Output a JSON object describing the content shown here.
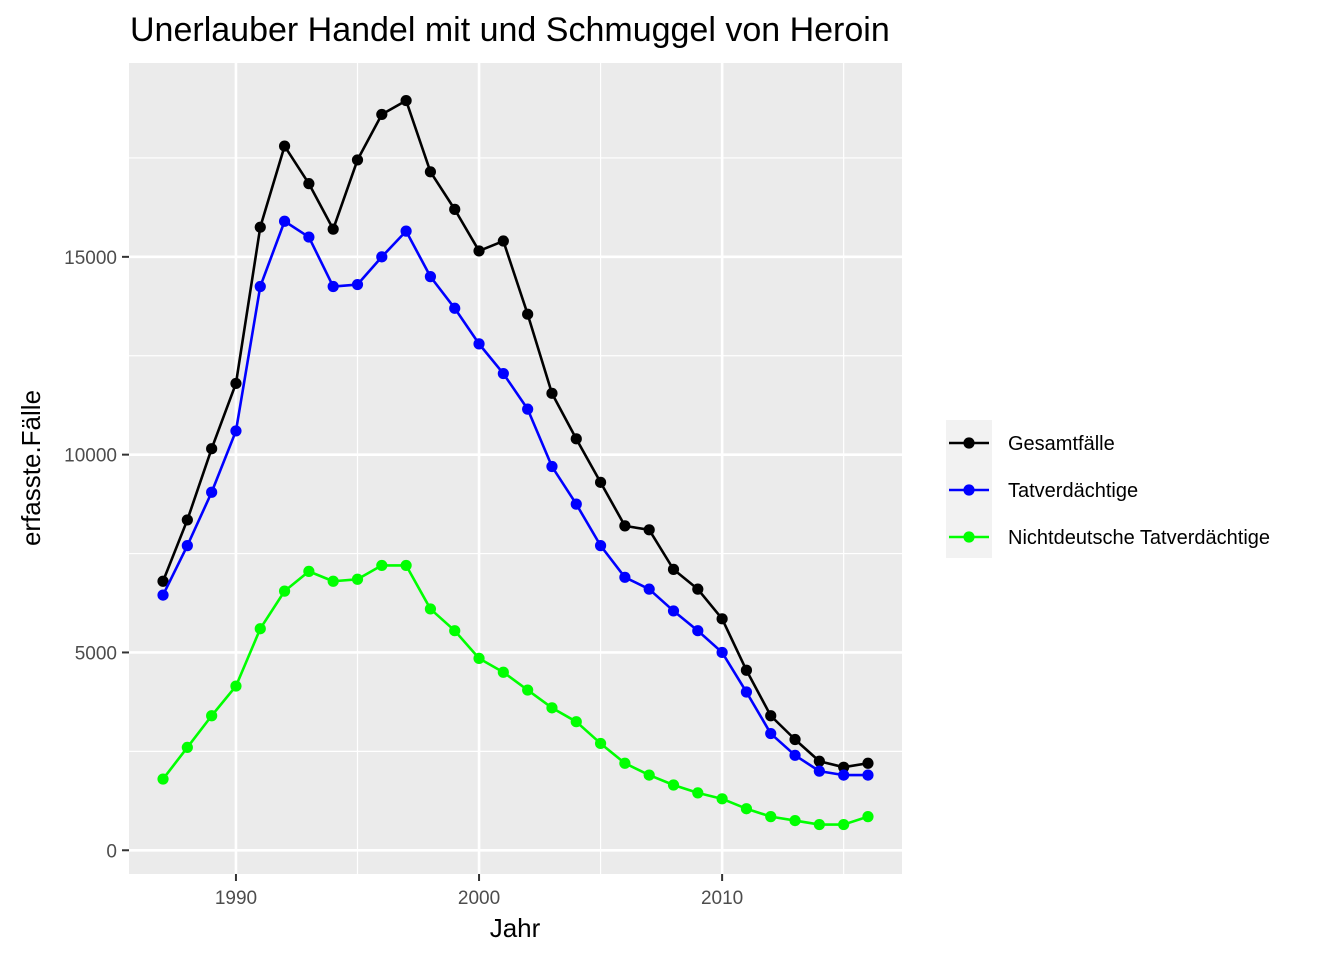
{
  "chart_data": {
    "type": "line",
    "title": "Unerlauber Handel mit und Schmuggel von Heroin",
    "xlabel": "Jahr",
    "ylabel": "erfasste.Fälle",
    "xlim": [
      1985.6,
      2017.4
    ],
    "ylim": [
      -600,
      19900
    ],
    "x_ticks": [
      1990,
      2000,
      2010
    ],
    "x_tick_labels": [
      "1990",
      "2000",
      "2010"
    ],
    "y_ticks": [
      0,
      5000,
      10000,
      15000
    ],
    "y_tick_labels": [
      "0",
      "5000",
      "10000",
      "15000"
    ],
    "grid": true,
    "legend_position": "right",
    "x": [
      1987,
      1988,
      1989,
      1990,
      1991,
      1992,
      1993,
      1994,
      1995,
      1996,
      1997,
      1998,
      1999,
      2000,
      2001,
      2002,
      2003,
      2004,
      2005,
      2006,
      2007,
      2008,
      2009,
      2010,
      2011,
      2012,
      2013,
      2014,
      2015,
      2016
    ],
    "series": [
      {
        "name": "Gesamtfälle",
        "color": "#000000",
        "values": [
          6800,
          8350,
          10150,
          11800,
          15750,
          17800,
          16850,
          15700,
          17450,
          18600,
          18950,
          17150,
          16200,
          15150,
          15400,
          13550,
          11550,
          10400,
          9300,
          8200,
          8100,
          7100,
          6600,
          5850,
          4550,
          3400,
          2800,
          2250,
          2100,
          2200
        ]
      },
      {
        "name": "Tatverdächtige",
        "color": "#0000ff",
        "values": [
          6450,
          7700,
          9050,
          10600,
          14250,
          15900,
          15500,
          14250,
          14300,
          15000,
          15650,
          14500,
          13700,
          12800,
          12050,
          11150,
          9700,
          8750,
          7700,
          6900,
          6600,
          6050,
          5550,
          5000,
          4000,
          2950,
          2400,
          2000,
          1900,
          1900
        ]
      },
      {
        "name": "Nichtdeutsche Tatverdächtige",
        "color": "#00ff00",
        "values": [
          1800,
          2600,
          3400,
          4150,
          5600,
          6550,
          7050,
          6800,
          6850,
          7200,
          7200,
          6100,
          5550,
          4850,
          4500,
          4050,
          3600,
          3250,
          2700,
          2200,
          1900,
          1650,
          1450,
          1300,
          1050,
          850,
          750,
          650,
          650,
          850
        ]
      }
    ]
  }
}
